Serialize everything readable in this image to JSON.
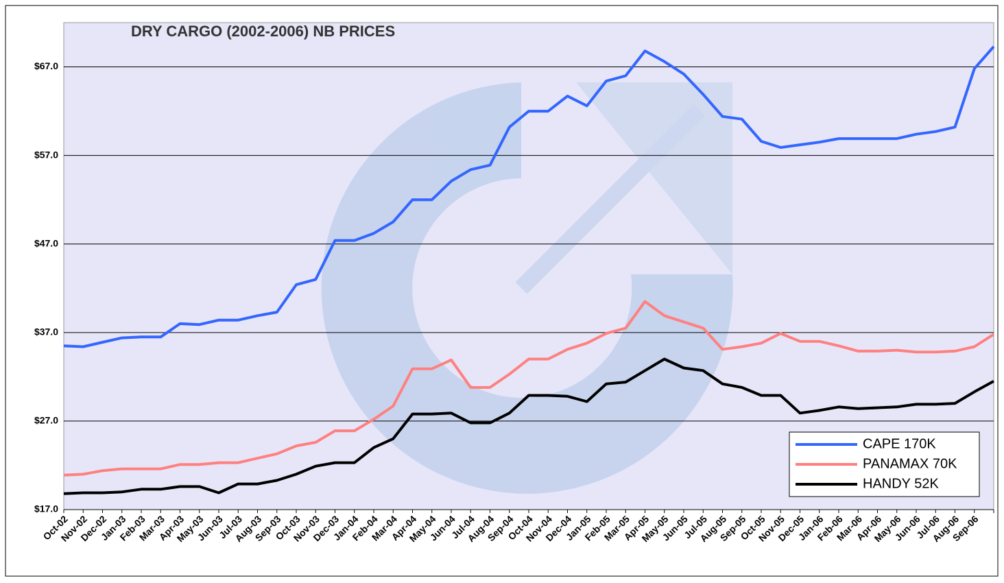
{
  "chart_data": {
    "type": "line",
    "title": "DRY CARGO (2002-2006) NB PRICES",
    "categories": [
      "Oct-02",
      "Nov-02",
      "Dec-02",
      "Jan-03",
      "Feb-03",
      "Mar-03",
      "Apr-03",
      "May-03",
      "Jun-03",
      "Jul-03",
      "Aug-03",
      "Sep-03",
      "Oct-03",
      "Nov-03",
      "Dec-03",
      "Jan-04",
      "Feb-04",
      "Mar-04",
      "Apr-04",
      "May-04",
      "Jun-04",
      "Jul-04",
      "Aug-04",
      "Sep-04",
      "Oct-04",
      "Nov-04",
      "Dec-04",
      "Jan-05",
      "Feb-05",
      "Mar-05",
      "Apr-05",
      "May-05",
      "Jun-05",
      "Jul-05",
      "Aug-05",
      "Sep-05",
      "Oct-05",
      "Nov-05",
      "Dec-05",
      "Jan-06",
      "Feb-06",
      "Mar-06",
      "Apr-06",
      "May-06",
      "Jun-06",
      "Jul-06",
      "Aug-06",
      "Sep-06",
      null
    ],
    "series": [
      {
        "name": "CAPE 170K",
        "color": "#3366ff",
        "values": [
          35.5,
          35.4,
          35.9,
          36.4,
          36.5,
          36.5,
          38.0,
          37.9,
          38.4,
          38.4,
          38.9,
          39.3,
          42.4,
          43.0,
          47.4,
          47.4,
          48.2,
          49.5,
          52.0,
          52.0,
          54.1,
          55.4,
          55.9,
          60.2,
          62.0,
          62.0,
          63.7,
          62.6,
          65.4,
          66.0,
          68.8,
          67.6,
          66.2,
          63.9,
          61.4,
          61.1,
          58.6,
          57.9,
          58.2,
          58.5,
          58.9,
          58.9,
          58.9,
          58.9,
          59.4,
          59.7,
          60.2,
          66.8,
          69.3
        ]
      },
      {
        "name": "PANAMAX 70K",
        "color": "#ff8080",
        "values": [
          20.9,
          21.0,
          21.4,
          21.6,
          21.6,
          21.6,
          22.1,
          22.1,
          22.3,
          22.3,
          22.8,
          23.3,
          24.2,
          24.6,
          25.9,
          25.9,
          27.2,
          28.7,
          32.9,
          32.9,
          33.9,
          30.8,
          30.8,
          32.3,
          34.0,
          34.0,
          35.1,
          35.8,
          36.9,
          37.5,
          40.5,
          38.9,
          38.2,
          37.5,
          35.1,
          35.4,
          35.8,
          36.9,
          36.0,
          36.0,
          35.5,
          34.9,
          34.9,
          35.0,
          34.8,
          34.8,
          34.9,
          35.4,
          36.8
        ]
      },
      {
        "name": "HANDY 52K",
        "color": "#000000",
        "values": [
          18.8,
          18.9,
          18.9,
          19.0,
          19.3,
          19.3,
          19.6,
          19.6,
          18.9,
          19.9,
          19.9,
          20.3,
          21.0,
          21.9,
          22.3,
          22.3,
          24.0,
          25.0,
          27.8,
          27.8,
          27.9,
          26.8,
          26.8,
          27.9,
          29.9,
          29.9,
          29.8,
          29.2,
          31.2,
          31.4,
          32.7,
          34.0,
          33.0,
          32.7,
          31.2,
          30.8,
          29.9,
          29.9,
          27.9,
          28.2,
          28.6,
          28.4,
          28.5,
          28.6,
          28.9,
          28.9,
          29.0,
          30.3,
          31.5
        ]
      }
    ],
    "ylim": [
      17,
      72
    ],
    "yticks": [
      {
        "value": 17,
        "label": "$17.0"
      },
      {
        "value": 27,
        "label": "$27.0"
      },
      {
        "value": 37,
        "label": "$37.0"
      },
      {
        "value": 47,
        "label": "$47.0"
      },
      {
        "value": 57,
        "label": "$57.0"
      },
      {
        "value": 67,
        "label": "$67.0"
      }
    ],
    "grid": true,
    "legend": "lower right"
  }
}
